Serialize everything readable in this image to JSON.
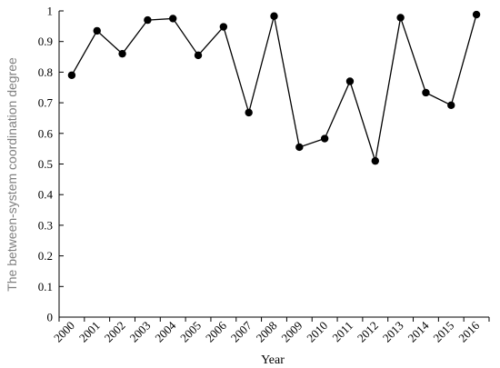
{
  "chart_data": {
    "type": "line",
    "xlabel": "Year",
    "ylabel": "The between-system coordination degree",
    "x": [
      "2000",
      "2001",
      "2002",
      "2003",
      "2004",
      "2005",
      "2006",
      "2007",
      "2008",
      "2009",
      "2010",
      "2011",
      "2012",
      "2013",
      "2014",
      "2015",
      "2016"
    ],
    "series": [
      {
        "values": [
          0.79,
          0.935,
          0.86,
          0.97,
          0.975,
          0.855,
          0.948,
          0.668,
          0.983,
          0.555,
          0.583,
          0.77,
          0.51,
          0.978,
          0.733,
          0.692,
          0.988
        ]
      }
    ],
    "ylim": [
      0,
      1
    ],
    "yticks": [
      "0",
      "0.1",
      "0.2",
      "0.3",
      "0.4",
      "0.5",
      "0.6",
      "0.7",
      "0.8",
      "0.9",
      "1"
    ],
    "grid": false,
    "legend": "none",
    "colors": {
      "line": "#000000",
      "marker": "#000000",
      "ylabel": "#7f7f7f"
    }
  }
}
